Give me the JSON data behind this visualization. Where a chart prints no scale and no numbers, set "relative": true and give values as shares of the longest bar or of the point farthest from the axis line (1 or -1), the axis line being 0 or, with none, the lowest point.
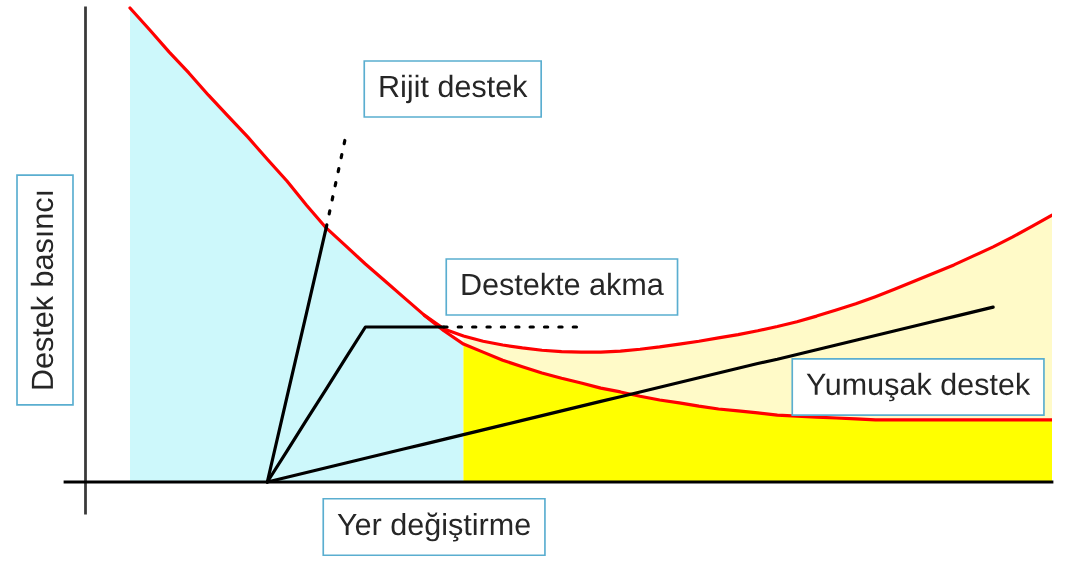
{
  "chart_data": {
    "type": "line",
    "relative": true,
    "xlabel": "Yer değiştirme",
    "ylabel": "Destek basıncı",
    "categories": [
      null,
      null,
      null,
      null,
      null,
      null,
      null,
      null,
      null,
      null,
      null,
      null,
      null,
      null,
      null,
      null,
      null,
      null,
      null,
      null,
      null,
      null,
      null,
      null,
      null,
      null,
      null,
      null,
      null,
      null,
      null,
      null,
      null,
      null,
      null,
      null,
      null,
      null,
      null,
      null,
      null,
      null,
      null,
      null,
      null,
      null,
      null,
      null
    ],
    "series": [
      {
        "type": "area",
        "color": "#cdf8fb",
        "values": [
          1.0,
          0.954,
          0.907,
          0.863,
          0.816,
          0.772,
          0.728,
          0.681,
          0.635,
          0.584,
          0.536,
          0.498,
          0.46,
          0.424,
          0.388,
          0.352,
          0.319,
          0.291,
          null,
          null,
          null,
          null,
          null,
          null,
          null,
          null,
          null,
          null,
          null,
          null,
          null,
          null,
          null,
          null,
          null,
          null,
          null,
          null,
          null,
          null,
          null,
          null,
          null,
          null,
          null,
          null,
          null,
          null
        ]
      },
      {
        "type": "area",
        "color": "#fffac8",
        "values": [
          null,
          null,
          null,
          null,
          null,
          null,
          null,
          null,
          null,
          null,
          null,
          null,
          null,
          null,
          null,
          null,
          null,
          0.308,
          0.297,
          0.289,
          0.283,
          0.278,
          0.275,
          0.274,
          0.274,
          0.276,
          0.28,
          0.285,
          0.291,
          0.297,
          0.304,
          0.311,
          0.319,
          0.328,
          0.338,
          0.35,
          0.363,
          0.376,
          0.391,
          0.407,
          0.424,
          0.441,
          0.458,
          0.477,
          0.496,
          0.517,
          0.54,
          0.563
        ]
      },
      {
        "type": "area",
        "color": "#ffff00",
        "values": [
          null,
          null,
          null,
          null,
          null,
          null,
          null,
          null,
          null,
          null,
          null,
          null,
          null,
          null,
          null,
          null,
          null,
          0.291,
          0.274,
          0.257,
          0.243,
          0.23,
          0.219,
          0.209,
          0.198,
          0.19,
          0.181,
          0.173,
          0.167,
          0.16,
          0.154,
          0.15,
          0.146,
          0.141,
          0.139,
          0.137,
          0.135,
          0.133,
          0.131,
          0.131,
          0.131,
          0.131,
          0.131,
          0.131,
          0.131,
          0.131,
          0.131,
          0.131
        ]
      },
      {
        "color": "#ff0000",
        "values": [
          1.0,
          0.954,
          0.907,
          0.863,
          0.816,
          0.772,
          0.728,
          0.681,
          0.635,
          0.584,
          0.536,
          0.498,
          0.46,
          0.424,
          0.388,
          0.352,
          0.319,
          0.291,
          0.274,
          0.257,
          0.243,
          0.23,
          0.219,
          0.209,
          0.198,
          0.19,
          0.181,
          0.173,
          0.167,
          0.16,
          0.154,
          0.15,
          0.146,
          0.141,
          0.139,
          0.137,
          0.135,
          0.133,
          0.131,
          0.131,
          0.131,
          0.131,
          0.131,
          0.131,
          0.131,
          0.131,
          0.131,
          0.131
        ]
      },
      {
        "color": "#ff0000",
        "values": [
          null,
          null,
          null,
          null,
          null,
          null,
          null,
          null,
          null,
          null,
          null,
          null,
          null,
          null,
          null,
          0.352,
          0.323,
          0.308,
          0.297,
          0.289,
          0.283,
          0.278,
          0.275,
          0.274,
          0.274,
          0.276,
          0.28,
          0.285,
          0.291,
          0.297,
          0.304,
          0.311,
          0.319,
          0.328,
          0.338,
          0.35,
          0.363,
          0.376,
          0.391,
          0.407,
          0.424,
          0.441,
          0.458,
          0.477,
          0.496,
          0.517,
          0.54,
          0.563
        ]
      },
      {
        "color": "#000000",
        "values": [
          null,
          null,
          null,
          null,
          null,
          null,
          null,
          0,
          0.179,
          0.357,
          0.536,
          null,
          null,
          null,
          null,
          null,
          null,
          null,
          null,
          null,
          null,
          null,
          null,
          null,
          null,
          null,
          null,
          null,
          null,
          null,
          null,
          null,
          null,
          null,
          null,
          null,
          null,
          null,
          null,
          null,
          null,
          null,
          null,
          null,
          null,
          null,
          null,
          null
        ]
      },
      {
        "color": "#000000",
        "line_style": "dotted",
        "values": [
          null,
          null,
          null,
          null,
          null,
          null,
          null,
          null,
          null,
          null,
          0.536,
          0.73,
          null,
          null,
          null,
          null,
          null,
          null,
          null,
          null,
          null,
          null,
          null,
          null,
          null,
          null,
          null,
          null,
          null,
          null,
          null,
          null,
          null,
          null,
          null,
          null,
          null,
          null,
          null,
          null,
          null,
          null,
          null,
          null,
          null,
          null,
          null,
          null
        ]
      },
      {
        "color": "#000000",
        "values": [
          null,
          null,
          null,
          null,
          null,
          null,
          null,
          0,
          0.065,
          0.131,
          0.196,
          0.262,
          0.327,
          0.327,
          0.327,
          0.327,
          0.327,
          null,
          null,
          null,
          null,
          null,
          null,
          null,
          null,
          null,
          null,
          null,
          null,
          null,
          null,
          null,
          null,
          null,
          null,
          null,
          null,
          null,
          null,
          null,
          null,
          null,
          null,
          null,
          null,
          null,
          null,
          null
        ]
      },
      {
        "color": "#000000",
        "line_style": "dotted",
        "values": [
          null,
          null,
          null,
          null,
          null,
          null,
          null,
          null,
          null,
          null,
          null,
          null,
          null,
          null,
          null,
          null,
          0.327,
          0.327,
          0.327,
          0.327,
          0.327,
          0.327,
          0.327,
          0.327,
          null,
          null,
          null,
          null,
          null,
          null,
          null,
          null,
          null,
          null,
          null,
          null,
          null,
          null,
          null,
          null,
          null,
          null,
          null,
          null,
          null,
          null,
          null,
          null
        ]
      },
      {
        "color": "#000000",
        "values": [
          null,
          null,
          null,
          null,
          null,
          null,
          null,
          0,
          0.01,
          0.02,
          0.03,
          0.04,
          0.05,
          0.06,
          0.07,
          0.08,
          0.09,
          0.1,
          0.11,
          0.12,
          0.13,
          0.14,
          0.15,
          0.16,
          0.17,
          0.18,
          0.19,
          0.2,
          0.21,
          0.22,
          0.23,
          0.24,
          0.25,
          0.259,
          0.269,
          0.279,
          0.289,
          0.299,
          0.309,
          0.319,
          0.329,
          0.339,
          0.349,
          0.359,
          0.369,
          null,
          null,
          null
        ]
      }
    ],
    "annotations": [
      "Rijit destek",
      "Destekte akma",
      "Yumuşak destek"
    ]
  }
}
